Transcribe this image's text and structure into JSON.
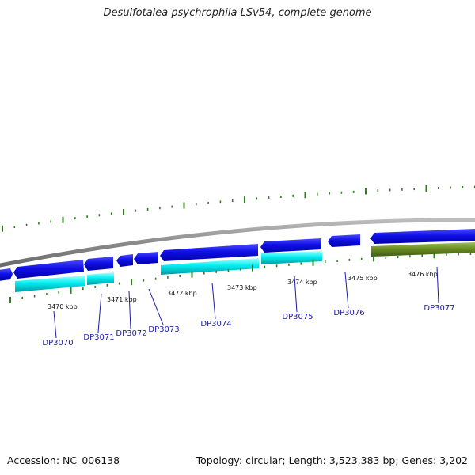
{
  "title": "Desulfotalea psychrophila LSv54, complete genome",
  "footer": {
    "accession": "Accession: NC_006138",
    "summary": "Topology: circular; Length: 3,523,383 bp; Genes: 3,202"
  },
  "colors": {
    "backbone": "#8a8a8a",
    "gene_forward_strand": "#1010e0",
    "gene_cyan": "#00e8ee",
    "gene_olive": "#6b8e23",
    "tick": "#2e7d1e",
    "gene_label": "#1a1aa6"
  },
  "scale_labels": [
    "3470 kbp",
    "3471 kbp",
    "3472 kbp",
    "3473 kbp",
    "3474 kbp",
    "3475 kbp",
    "3476 kbp"
  ],
  "gene_labels": [
    "DP3070",
    "DP3071",
    "DP3072",
    "DP3073",
    "DP3074",
    "DP3075",
    "DP3076",
    "DP3077"
  ]
}
